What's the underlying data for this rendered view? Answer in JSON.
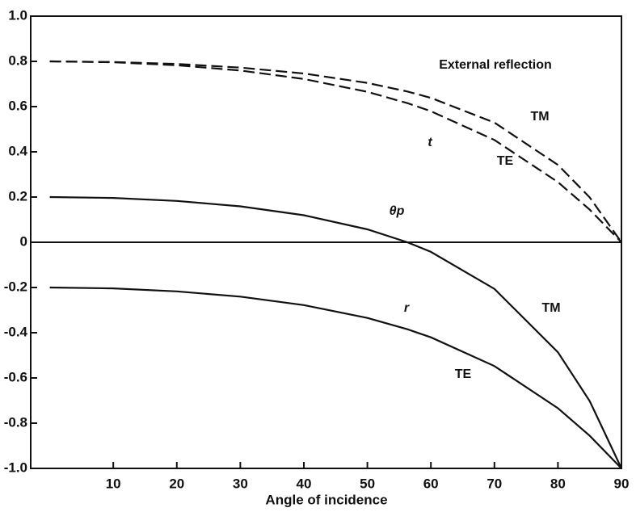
{
  "chart_data": {
    "type": "line",
    "x_label": "Angle of incidence",
    "x": [
      0,
      10,
      20,
      30,
      40,
      50,
      56.3,
      60,
      70,
      80,
      85,
      90
    ],
    "series": [
      {
        "name": "TM",
        "color": "#111111",
        "dashed": true,
        "values": [
          0.8,
          0.7973,
          0.7886,
          0.7726,
          0.7464,
          0.7048,
          0.6667,
          0.6384,
          0.5292,
          0.3422,
          0.1985,
          0
        ]
      },
      {
        "name": "TE",
        "color": "#111111",
        "dashed": true,
        "values": [
          0.8,
          0.7959,
          0.783,
          0.7596,
          0.7222,
          0.6653,
          0.6154,
          0.5798,
          0.4526,
          0.2661,
          0.1442,
          0
        ]
      },
      {
        "name": "TM",
        "color": "#111111",
        "dashed": false,
        "values": [
          0.2,
          0.1959,
          0.1829,
          0.1589,
          0.1196,
          0.0572,
          0,
          -0.0425,
          -0.2062,
          -0.4866,
          -0.7023,
          -1
        ]
      },
      {
        "name": "TE",
        "color": "#111111",
        "dashed": false,
        "values": [
          -0.2,
          -0.2041,
          -0.217,
          -0.2404,
          -0.2778,
          -0.3347,
          -0.3846,
          -0.4202,
          -0.5474,
          -0.7339,
          -0.8558,
          -1
        ]
      }
    ],
    "annotations": [
      "External reflection",
      "t",
      "θp",
      "r"
    ],
    "xlim": [
      -3,
      90
    ],
    "xticks": [
      10,
      20,
      30,
      40,
      50,
      60,
      70,
      80,
      90
    ],
    "ylim": [
      -1,
      1
    ],
    "yticks": [
      {
        "value": -1,
        "label": "-1.0"
      },
      -0.8,
      -0.6,
      -0.4,
      -0.2,
      0,
      0.2,
      0.4,
      0.6,
      0.8,
      {
        "value": 1,
        "label": "1.0"
      }
    ]
  }
}
